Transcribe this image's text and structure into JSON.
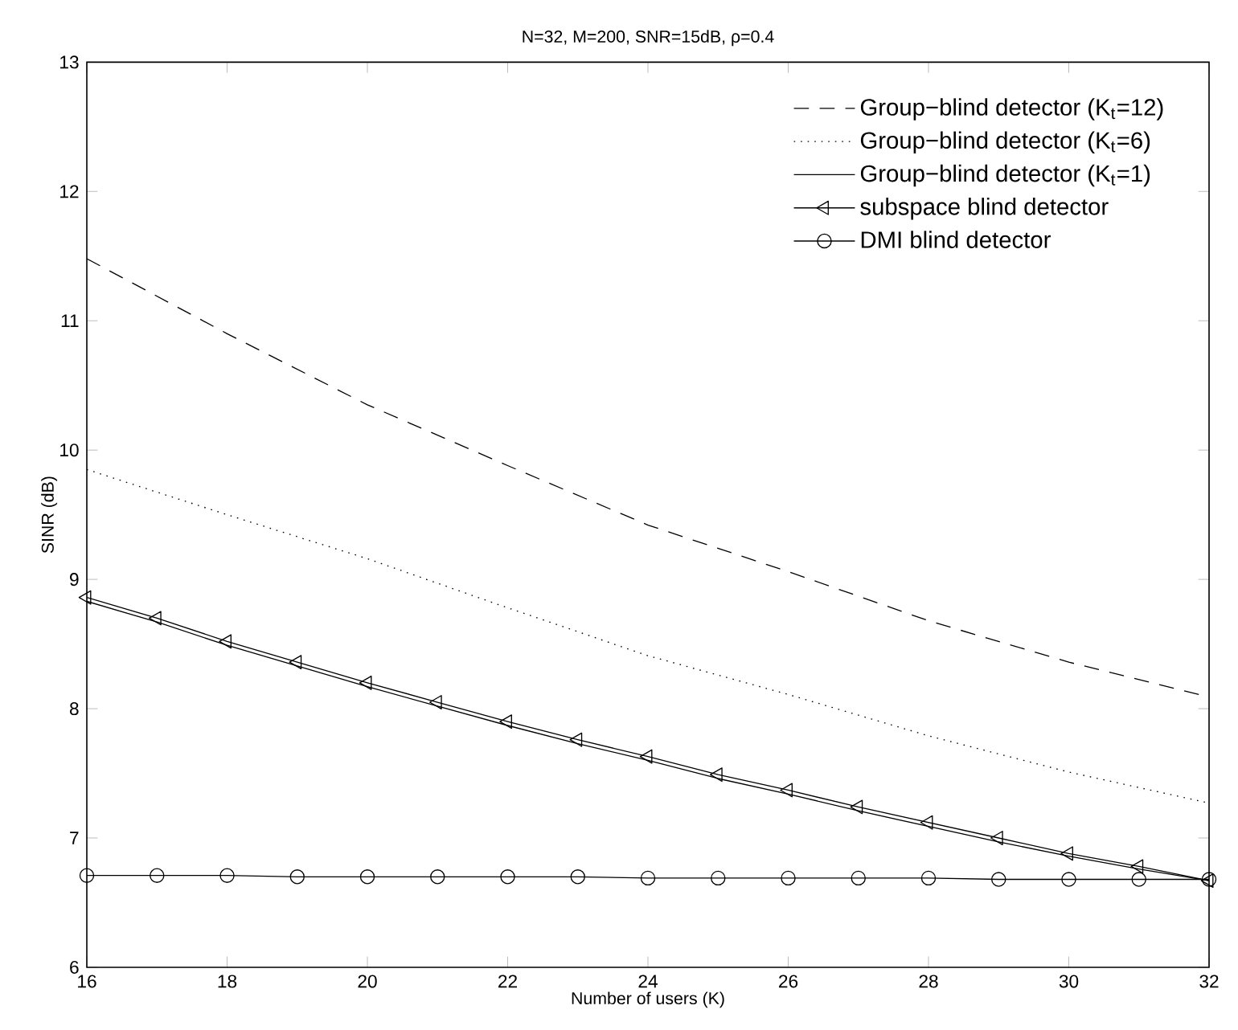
{
  "chart_data": {
    "type": "line",
    "title": "N=32, M=200, SNR=15dB, ρ=0.4",
    "xlabel": "Number of users (K)",
    "ylabel": "SINR (dB)",
    "xlim": [
      16,
      32
    ],
    "ylim": [
      6,
      13
    ],
    "xticks": [
      16,
      18,
      20,
      22,
      24,
      26,
      28,
      30,
      32
    ],
    "yticks": [
      6,
      7,
      8,
      9,
      10,
      11,
      12,
      13
    ],
    "grid": false,
    "legend": "top right",
    "series": [
      {
        "name": "Group−blind detector (K$_{t}$=12)",
        "color": "#000000",
        "line_style": "dashed",
        "marker": "none",
        "x": [
          16,
          18,
          20,
          22,
          24,
          26,
          28,
          30,
          32
        ],
        "values": [
          11.48,
          10.9,
          10.35,
          9.88,
          9.42,
          9.06,
          8.68,
          8.36,
          8.09
        ]
      },
      {
        "name": "Group−blind detector (K$_{t}$=6)",
        "color": "#000000",
        "line_style": "dotted",
        "marker": "none",
        "x": [
          16,
          18,
          20,
          22,
          24,
          26,
          28,
          30,
          32
        ],
        "values": [
          9.85,
          9.5,
          9.16,
          8.78,
          8.41,
          8.11,
          7.79,
          7.51,
          7.27
        ]
      },
      {
        "name": "Group−blind detector (K$_{t}$=1)",
        "color": "#000000",
        "line_style": "solid",
        "marker": "none",
        "x": [
          16,
          17,
          18,
          19,
          20,
          21,
          22,
          23,
          24,
          25,
          26,
          27,
          28,
          29,
          30,
          31,
          32
        ],
        "values": [
          8.83,
          8.67,
          8.49,
          8.33,
          8.17,
          8.02,
          7.87,
          7.73,
          7.6,
          7.46,
          7.34,
          7.21,
          7.09,
          6.97,
          6.86,
          6.76,
          6.67
        ]
      },
      {
        "name": "subspace blind detector",
        "color": "#000000",
        "line_style": "solid",
        "marker": "triangle",
        "x": [
          16,
          17,
          18,
          19,
          20,
          21,
          22,
          23,
          24,
          25,
          26,
          27,
          28,
          29,
          30,
          31,
          32
        ],
        "values": [
          8.86,
          8.7,
          8.52,
          8.36,
          8.2,
          8.05,
          7.9,
          7.76,
          7.63,
          7.49,
          7.37,
          7.24,
          7.12,
          7.0,
          6.88,
          6.78,
          6.67
        ]
      },
      {
        "name": "DMI blind detector",
        "color": "#000000",
        "line_style": "solid",
        "marker": "circle",
        "x": [
          16,
          17,
          18,
          19,
          20,
          21,
          22,
          23,
          24,
          25,
          26,
          27,
          28,
          29,
          30,
          31,
          32
        ],
        "values": [
          6.71,
          6.71,
          6.71,
          6.7,
          6.7,
          6.7,
          6.7,
          6.7,
          6.69,
          6.69,
          6.69,
          6.69,
          6.69,
          6.68,
          6.68,
          6.68,
          6.68
        ]
      }
    ]
  }
}
